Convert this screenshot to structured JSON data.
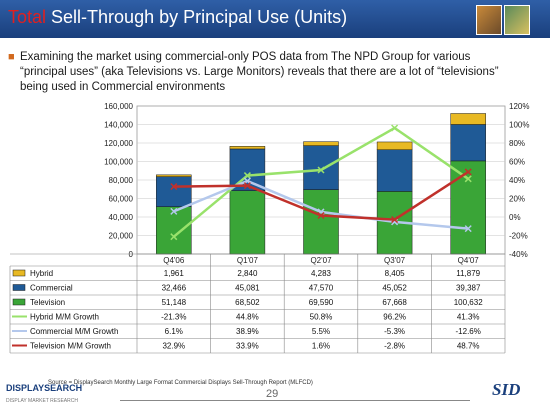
{
  "slide": {
    "title_accent": "Total",
    "title_rest": " Sell-Through by Principal Use (Units)",
    "bullet": "Examining the market using commercial-only POS data from The NPD Group for various “principal uses” (aka Televisions vs. Large Monitors) reveals that there are a lot of “televisions” being used in Commercial environments",
    "source": "Source = DisplaySearch Monthly Large Format Commercial Displays Sell-Through Report (MLFCD)",
    "page_number": "29",
    "left_logo": "DISPLAYSEARCH",
    "left_logo_tagline": "DISPLAY MARKET RESEARCH",
    "right_logo": "SID"
  },
  "chart_data": {
    "type": "bar",
    "stacked": true,
    "categories": [
      "Q4'06",
      "Q1'07",
      "Q2'07",
      "Q3'07",
      "Q4'07"
    ],
    "y_left": {
      "min": 0,
      "max": 160000,
      "step": 20000,
      "ticks": [
        "0",
        "20,000",
        "40,000",
        "60,000",
        "80,000",
        "100,000",
        "120,000",
        "140,000",
        "160,000"
      ]
    },
    "y_right": {
      "min": -40,
      "max": 120,
      "step": 20,
      "ticks": [
        "-40%",
        "-20%",
        "0%",
        "20%",
        "40%",
        "60%",
        "80%",
        "100%",
        "120%"
      ]
    },
    "bar_series": [
      {
        "name": "Television",
        "color": "#3aa537",
        "values": [
          51148,
          68502,
          69590,
          67668,
          100632
        ],
        "labels": [
          "51,148",
          "68,502",
          "69,590",
          "67,668",
          "100,632"
        ]
      },
      {
        "name": "Commercial",
        "color": "#1f5a96",
        "values": [
          32466,
          45081,
          47570,
          45052,
          39387
        ],
        "labels": [
          "32,466",
          "45,081",
          "47,570",
          "45,052",
          "39,387"
        ]
      },
      {
        "name": "Hybrid",
        "color": "#e8b923",
        "values": [
          1961,
          2840,
          4283,
          8405,
          11879
        ],
        "labels": [
          "1,961",
          "2,840",
          "4,283",
          "8,405",
          "11,879"
        ]
      }
    ],
    "line_series": [
      {
        "name": "Hybrid M/M Growth",
        "color": "#99e26b",
        "values": [
          -21.3,
          44.8,
          50.8,
          96.2,
          41.3
        ],
        "labels": [
          "-21.3%",
          "44.8%",
          "50.8%",
          "96.2%",
          "41.3%"
        ]
      },
      {
        "name": "Commercial M/M Growth",
        "color": "#b4c8ec",
        "values": [
          6.1,
          38.9,
          5.5,
          -5.3,
          -12.6
        ],
        "labels": [
          "6.1%",
          "38.9%",
          "5.5%",
          "-5.3%",
          "-12.6%"
        ]
      },
      {
        "name": "Television M/M Growth",
        "color": "#c0312b",
        "values": [
          32.9,
          33.9,
          1.6,
          -2.8,
          48.7
        ],
        "labels": [
          "32.9%",
          "33.9%",
          "1.6%",
          "-2.8%",
          "48.7%"
        ]
      }
    ],
    "table_rows": [
      "Hybrid",
      "Commercial",
      "Television",
      "Hybrid M/M Growth",
      "Commercial M/M Growth",
      "Television M/M Growth"
    ],
    "grid": true
  }
}
